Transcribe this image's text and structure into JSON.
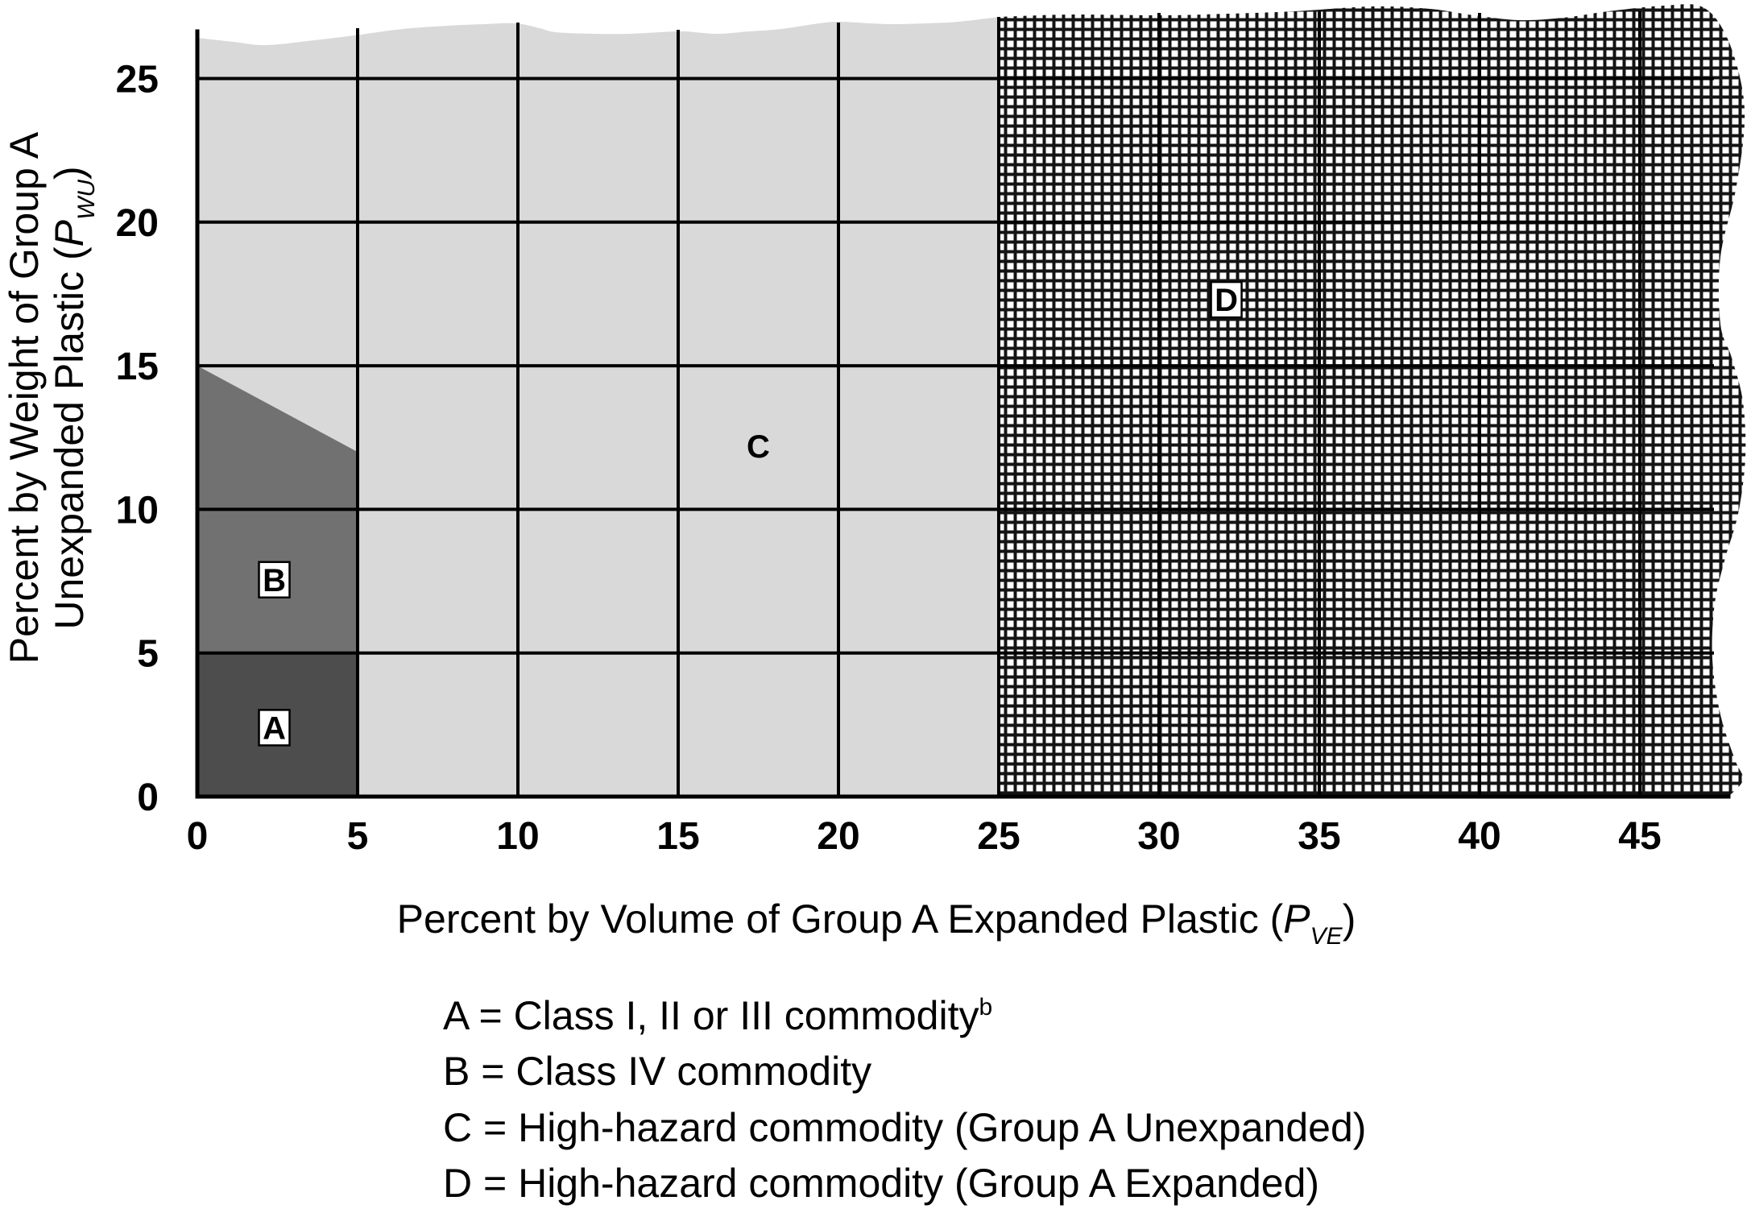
{
  "chart_data": {
    "type": "area",
    "x_axis": {
      "label": "Percent by Volume of Group A Expanded Plastic (",
      "label_var": "P",
      "label_sub": "VE",
      "label_close": ")",
      "ticks": [
        0,
        5,
        10,
        15,
        20,
        25,
        30,
        35,
        40,
        45
      ],
      "range": [
        0,
        48
      ]
    },
    "y_axis": {
      "label_line1": "Percent by Weight of Group A",
      "label_line2": "Unexpanded Plastic (",
      "label_var": "P",
      "label_sub": "WU",
      "label_close": ")",
      "ticks": [
        0,
        5,
        10,
        15,
        20,
        25
      ],
      "range": [
        0,
        27
      ]
    },
    "grid": true,
    "regions": [
      {
        "label": "A",
        "boxed": true,
        "fill": "#4d4d4d",
        "polygon": [
          [
            0,
            0
          ],
          [
            5,
            0
          ],
          [
            5,
            5
          ],
          [
            0,
            5
          ]
        ]
      },
      {
        "label": "B",
        "boxed": true,
        "fill": "#717171",
        "polygon": [
          [
            0,
            5
          ],
          [
            5,
            5
          ],
          [
            5,
            12
          ],
          [
            0,
            15
          ]
        ]
      },
      {
        "label": "C",
        "boxed": false,
        "fill": "#d9d9d9",
        "x_range": [
          0,
          25
        ],
        "y_range": [
          0,
          null
        ]
      },
      {
        "label": "D",
        "boxed": true,
        "fill_pattern": {
          "ink": "#141414",
          "paper": "#ffffff"
        },
        "x_range": [
          25,
          null
        ],
        "y_range": [
          0,
          null
        ]
      }
    ],
    "legend": [
      {
        "text": "A = Class I, II or III commodity",
        "footnote": "b"
      },
      {
        "text": "B = Class IV commodity"
      },
      {
        "text": "C = High-hazard commodity (Group A Unexpanded)"
      },
      {
        "text": "D = High-hazard commodity (Group A Expanded)"
      }
    ]
  }
}
